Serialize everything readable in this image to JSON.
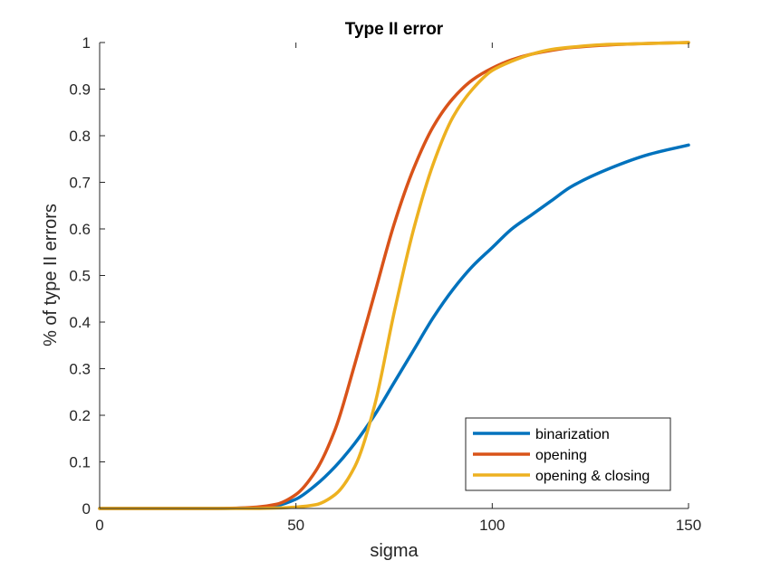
{
  "chart_data": {
    "type": "line",
    "title": "Type II error",
    "xlabel": "sigma",
    "ylabel": "% of type II errors",
    "xlim": [
      0,
      150
    ],
    "ylim": [
      0,
      1
    ],
    "xticks": [
      "0",
      "50",
      "100",
      "150"
    ],
    "yticks": [
      "0",
      "0.1",
      "0.2",
      "0.3",
      "0.4",
      "0.5",
      "0.6",
      "0.7",
      "0.8",
      "0.9",
      "1"
    ],
    "grid": false,
    "legend_position": "bottom-right",
    "x": [
      0,
      10,
      20,
      30,
      40,
      45,
      50,
      55,
      60,
      65,
      70,
      75,
      80,
      85,
      90,
      95,
      100,
      105,
      110,
      115,
      120,
      130,
      140,
      150
    ],
    "series": [
      {
        "name": "binarization",
        "color": "#0072BD",
        "values": [
          0,
          0,
          0,
          0,
          0.002,
          0.006,
          0.02,
          0.05,
          0.09,
          0.14,
          0.2,
          0.27,
          0.34,
          0.41,
          0.47,
          0.52,
          0.56,
          0.6,
          0.63,
          0.66,
          0.69,
          0.73,
          0.76,
          0.78
        ]
      },
      {
        "name": "opening",
        "color": "#D95319",
        "values": [
          0,
          0,
          0,
          0,
          0.003,
          0.009,
          0.03,
          0.08,
          0.17,
          0.31,
          0.46,
          0.61,
          0.73,
          0.82,
          0.88,
          0.92,
          0.945,
          0.963,
          0.975,
          0.983,
          0.989,
          0.995,
          0.998,
          1.0
        ]
      },
      {
        "name": "opening & closing",
        "color": "#EDB120",
        "values": [
          0,
          0,
          0,
          0,
          0,
          0.001,
          0.003,
          0.008,
          0.03,
          0.09,
          0.22,
          0.42,
          0.6,
          0.74,
          0.84,
          0.9,
          0.94,
          0.96,
          0.975,
          0.985,
          0.99,
          0.996,
          0.998,
          1.0
        ]
      }
    ]
  }
}
